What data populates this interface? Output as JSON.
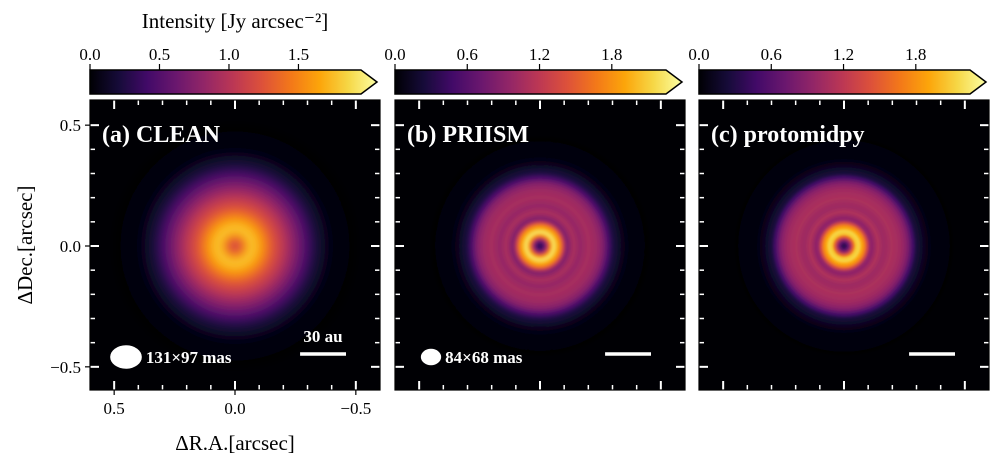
{
  "chart_data": {
    "type": "heatmap",
    "colormap": "inferno",
    "colorbar_title": "Intensity [Jy arcsec⁻²]",
    "xlabel": "ΔR.A.[arcsec]",
    "ylabel": "ΔDec.[arcsec]",
    "xlim": [
      0.6,
      -0.6
    ],
    "ylim": [
      -0.6,
      0.6
    ],
    "x_ticks": [
      "−0.5",
      "0.0",
      "0.5"
    ],
    "x_tick_values": [
      -0.5,
      0.0,
      0.5
    ],
    "y_ticks": [
      "0.5",
      "0.0",
      "−0.5"
    ],
    "y_tick_values": [
      0.5,
      0.0,
      -0.5
    ],
    "scale_bar_label": "30 au",
    "scale_bar_arcsec": 0.2,
    "panels": [
      {
        "label": "(a) CLEAN",
        "beam_label": "131×97 mas",
        "beam_major_mas": 131,
        "beam_minor_mas": 97,
        "colorbar_ticks": [
          "0.0",
          "0.5",
          "1.0",
          "1.5"
        ],
        "colorbar_tick_values": [
          0.0,
          0.5,
          1.0,
          1.5
        ],
        "colorbar_range": [
          0.0,
          1.95
        ],
        "peak_intensity": 1.95,
        "show_scale_label": true
      },
      {
        "label": "(b) PRIISM",
        "beam_label": "84×68 mas",
        "beam_major_mas": 84,
        "beam_minor_mas": 68,
        "colorbar_ticks": [
          "0.0",
          "0.6",
          "1.2",
          "1.8"
        ],
        "colorbar_tick_values": [
          0.0,
          0.6,
          1.2,
          1.8
        ],
        "colorbar_range": [
          0.0,
          2.25
        ],
        "peak_intensity": 2.4,
        "show_scale_label": false
      },
      {
        "label": "(c) protomidpy",
        "beam_label": "",
        "colorbar_ticks": [
          "0.0",
          "0.6",
          "1.2",
          "1.8"
        ],
        "colorbar_tick_values": [
          0.0,
          0.6,
          1.2,
          1.8
        ],
        "colorbar_range": [
          0.0,
          2.25
        ],
        "peak_intensity": 2.4,
        "show_scale_label": false
      }
    ]
  }
}
